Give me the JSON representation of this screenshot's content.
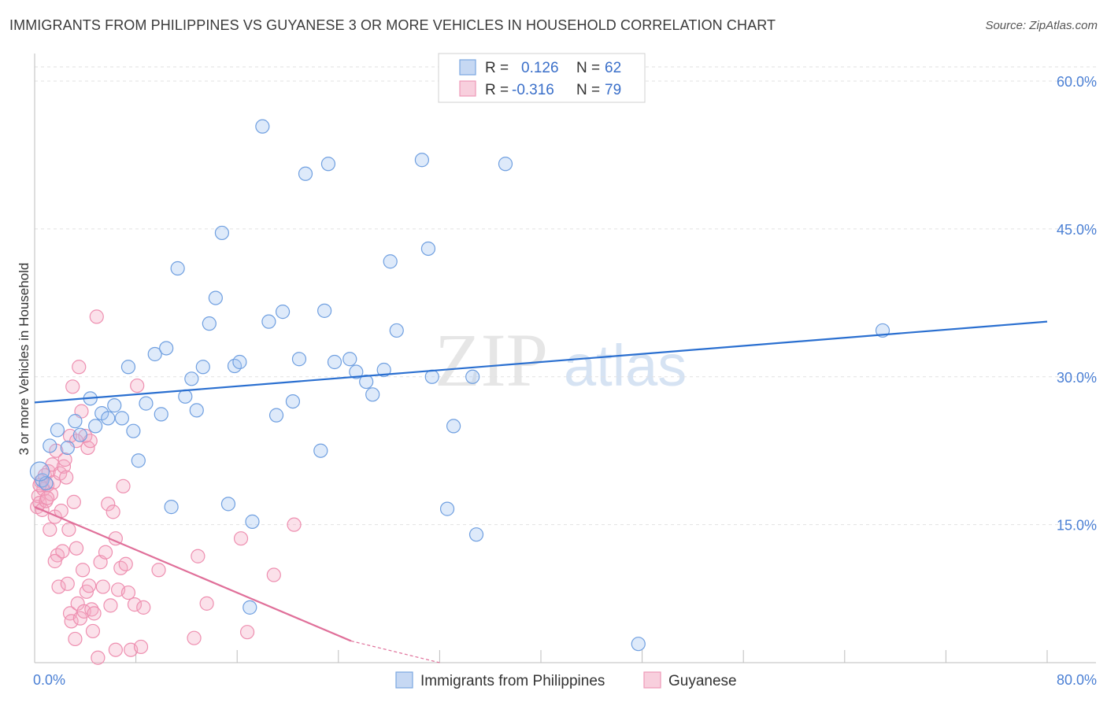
{
  "title": "IMMIGRANTS FROM PHILIPPINES VS GUYANESE 3 OR MORE VEHICLES IN HOUSEHOLD CORRELATION CHART",
  "source": "Source: ZipAtlas.com",
  "watermark": {
    "zip": "ZIP",
    "atlas": "atlas"
  },
  "legend": {
    "r_label": "R =",
    "n_label": "N =",
    "rows": [
      {
        "series": "Immigrants from Philippines",
        "r": "0.126",
        "n": "62"
      },
      {
        "series": "Guyanese",
        "r": "-0.316",
        "n": "79"
      }
    ]
  },
  "chart_data": {
    "type": "scatter",
    "title": "IMMIGRANTS FROM PHILIPPINES VS GUYANESE 3 OR MORE VEHICLES IN HOUSEHOLD CORRELATION CHART",
    "xlabel": "",
    "ylabel": "3 or more Vehicles in Household",
    "xlim": [
      0,
      80
    ],
    "ylim": [
      1,
      62
    ],
    "x_tick_labels": [
      {
        "value": 0,
        "label": "0.0%"
      },
      {
        "value": 80,
        "label": "80.0%"
      }
    ],
    "y_tick_labels": [
      {
        "value": 15,
        "label": "15.0%"
      },
      {
        "value": 30,
        "label": "30.0%"
      },
      {
        "value": 45,
        "label": "45.0%"
      },
      {
        "value": 60,
        "label": "60.0%"
      }
    ],
    "grid": true,
    "legend_position": "top-center",
    "colors": {
      "Immigrants from Philippines": "#6f9fe0",
      "Guyanese": "#ee8fb0",
      "blue_line": "#2a6fd0",
      "pink_line": "#e0709a"
    },
    "series": [
      {
        "name": "Immigrants from Philippines",
        "trend": {
          "x": [
            0,
            80
          ],
          "y": [
            27.4,
            35.6
          ]
        },
        "points": [
          [
            0.6,
            19.5
          ],
          [
            1.2,
            23.0
          ],
          [
            1.8,
            24.6
          ],
          [
            2.6,
            22.8
          ],
          [
            3.2,
            25.5
          ],
          [
            3.6,
            24.1
          ],
          [
            4.4,
            27.8
          ],
          [
            4.8,
            25.0
          ],
          [
            5.3,
            26.3
          ],
          [
            5.8,
            25.8
          ],
          [
            6.3,
            27.1
          ],
          [
            6.9,
            25.8
          ],
          [
            7.4,
            31.0
          ],
          [
            7.8,
            24.5
          ],
          [
            8.2,
            21.5
          ],
          [
            8.8,
            27.3
          ],
          [
            9.5,
            32.3
          ],
          [
            10.0,
            26.2
          ],
          [
            10.4,
            32.9
          ],
          [
            10.8,
            16.8
          ],
          [
            11.3,
            41.0
          ],
          [
            11.9,
            28.0
          ],
          [
            12.4,
            29.8
          ],
          [
            12.8,
            26.6
          ],
          [
            13.3,
            31.0
          ],
          [
            13.8,
            35.4
          ],
          [
            14.3,
            38.0
          ],
          [
            14.8,
            44.6
          ],
          [
            15.3,
            17.1
          ],
          [
            15.8,
            31.1
          ],
          [
            16.2,
            31.5
          ],
          [
            17.2,
            15.3
          ],
          [
            18.0,
            55.4
          ],
          [
            18.5,
            35.6
          ],
          [
            19.1,
            26.1
          ],
          [
            19.6,
            36.6
          ],
          [
            20.4,
            27.5
          ],
          [
            20.9,
            31.8
          ],
          [
            21.4,
            50.6
          ],
          [
            22.6,
            22.5
          ],
          [
            22.9,
            36.7
          ],
          [
            23.2,
            51.6
          ],
          [
            23.7,
            31.5
          ],
          [
            24.9,
            31.8
          ],
          [
            25.4,
            30.5
          ],
          [
            26.2,
            29.5
          ],
          [
            26.7,
            28.2
          ],
          [
            27.6,
            30.7
          ],
          [
            28.1,
            41.7
          ],
          [
            28.6,
            34.7
          ],
          [
            30.6,
            52.0
          ],
          [
            31.1,
            43.0
          ],
          [
            31.4,
            30.0
          ],
          [
            32.6,
            16.6
          ],
          [
            33.1,
            25.0
          ],
          [
            34.6,
            30.0
          ],
          [
            34.9,
            14.0
          ],
          [
            37.2,
            51.6
          ],
          [
            17.0,
            6.6
          ],
          [
            47.7,
            2.9
          ],
          [
            67.0,
            34.7
          ],
          [
            0.9,
            19.2
          ]
        ]
      },
      {
        "name": "Guyanese",
        "trend": {
          "x": [
            0,
            25
          ],
          "y": [
            16.8,
            3.2
          ]
        },
        "trend_dashed_extension": {
          "x": [
            25,
            32
          ],
          "y": [
            3.2,
            -0.6
          ]
        },
        "points": [
          [
            0.2,
            16.8
          ],
          [
            0.3,
            17.9
          ],
          [
            0.4,
            17.2
          ],
          [
            0.5,
            19.4
          ],
          [
            0.6,
            16.5
          ],
          [
            0.7,
            18.6
          ],
          [
            0.8,
            20.0
          ],
          [
            0.9,
            17.4
          ],
          [
            1.0,
            19.0
          ],
          [
            1.1,
            20.4
          ],
          [
            1.2,
            14.5
          ],
          [
            1.3,
            18.1
          ],
          [
            1.4,
            21.1
          ],
          [
            1.5,
            19.3
          ],
          [
            1.6,
            15.8
          ],
          [
            1.7,
            22.5
          ],
          [
            1.8,
            11.9
          ],
          [
            1.9,
            8.7
          ],
          [
            2.0,
            20.2
          ],
          [
            2.1,
            16.4
          ],
          [
            2.2,
            12.3
          ],
          [
            2.3,
            20.9
          ],
          [
            2.4,
            21.6
          ],
          [
            2.5,
            19.8
          ],
          [
            2.6,
            9.0
          ],
          [
            2.7,
            14.5
          ],
          [
            2.8,
            6.0
          ],
          [
            2.9,
            5.2
          ],
          [
            3.0,
            29.0
          ],
          [
            3.1,
            17.3
          ],
          [
            3.2,
            3.4
          ],
          [
            3.3,
            12.6
          ],
          [
            3.4,
            7.0
          ],
          [
            3.5,
            31.0
          ],
          [
            3.6,
            5.5
          ],
          [
            3.7,
            26.5
          ],
          [
            3.8,
            10.4
          ],
          [
            3.9,
            6.2
          ],
          [
            4.0,
            24.0
          ],
          [
            4.1,
            8.2
          ],
          [
            4.2,
            22.8
          ],
          [
            4.3,
            8.8
          ],
          [
            4.4,
            23.5
          ],
          [
            4.5,
            6.4
          ],
          [
            4.6,
            4.2
          ],
          [
            4.7,
            6.0
          ],
          [
            4.9,
            36.1
          ],
          [
            5.0,
            1.5
          ],
          [
            5.2,
            11.2
          ],
          [
            5.4,
            8.7
          ],
          [
            5.6,
            12.2
          ],
          [
            5.8,
            17.1
          ],
          [
            6.0,
            6.8
          ],
          [
            6.2,
            16.3
          ],
          [
            6.4,
            13.6
          ],
          [
            6.6,
            8.4
          ],
          [
            6.8,
            10.6
          ],
          [
            7.0,
            18.9
          ],
          [
            7.2,
            11.0
          ],
          [
            7.4,
            8.1
          ],
          [
            7.6,
            2.3
          ],
          [
            7.9,
            6.9
          ],
          [
            8.1,
            29.1
          ],
          [
            8.4,
            2.6
          ],
          [
            8.6,
            6.6
          ],
          [
            9.8,
            10.4
          ],
          [
            12.6,
            3.5
          ],
          [
            12.9,
            11.8
          ],
          [
            13.6,
            7.0
          ],
          [
            16.3,
            13.6
          ],
          [
            16.8,
            4.1
          ],
          [
            18.9,
            9.9
          ],
          [
            20.5,
            15.0
          ],
          [
            1.6,
            11.3
          ],
          [
            2.8,
            24.0
          ],
          [
            3.3,
            23.5
          ],
          [
            0.4,
            19.0
          ],
          [
            1.0,
            17.7
          ],
          [
            6.4,
            2.3
          ]
        ]
      }
    ]
  },
  "bottom_legend": [
    {
      "label": "Immigrants from Philippines"
    },
    {
      "label": "Guyanese"
    }
  ]
}
